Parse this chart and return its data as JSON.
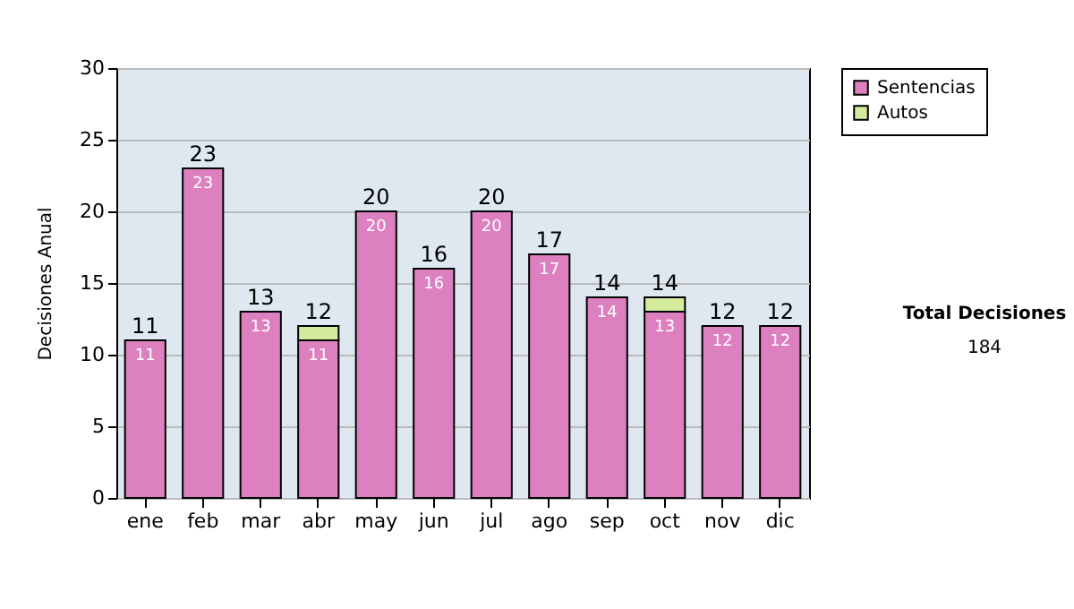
{
  "chart_data": {
    "type": "bar",
    "stacked": true,
    "ylabel": "Decisiones Anual",
    "categories": [
      "ene",
      "feb",
      "mar",
      "abr",
      "may",
      "jun",
      "jul",
      "ago",
      "sep",
      "oct",
      "nov",
      "dic"
    ],
    "series": [
      {
        "name": "Sentencias",
        "color": "#dd80c0",
        "values": [
          11,
          23,
          13,
          11,
          20,
          16,
          20,
          17,
          14,
          13,
          12,
          12
        ],
        "value_labels": [
          "11",
          "23",
          "13",
          "11",
          "20",
          "16",
          "20",
          "17",
          "14",
          "13",
          "12",
          "12"
        ]
      },
      {
        "name": "Autos",
        "color": "#d4ea9c",
        "values": [
          null,
          null,
          null,
          1,
          null,
          null,
          null,
          null,
          null,
          1,
          null,
          null
        ]
      }
    ],
    "totals": [
      "11",
      "23",
      "13",
      "12",
      "20",
      "16",
      "20",
      "17",
      "14",
      "14",
      "12",
      "12"
    ],
    "ylim": [
      0,
      30
    ],
    "yticks": [
      0,
      5,
      10,
      15,
      20,
      25,
      30
    ],
    "grid": "y",
    "legend": "right",
    "annotations": [
      "Total Decisiones",
      "184"
    ]
  }
}
